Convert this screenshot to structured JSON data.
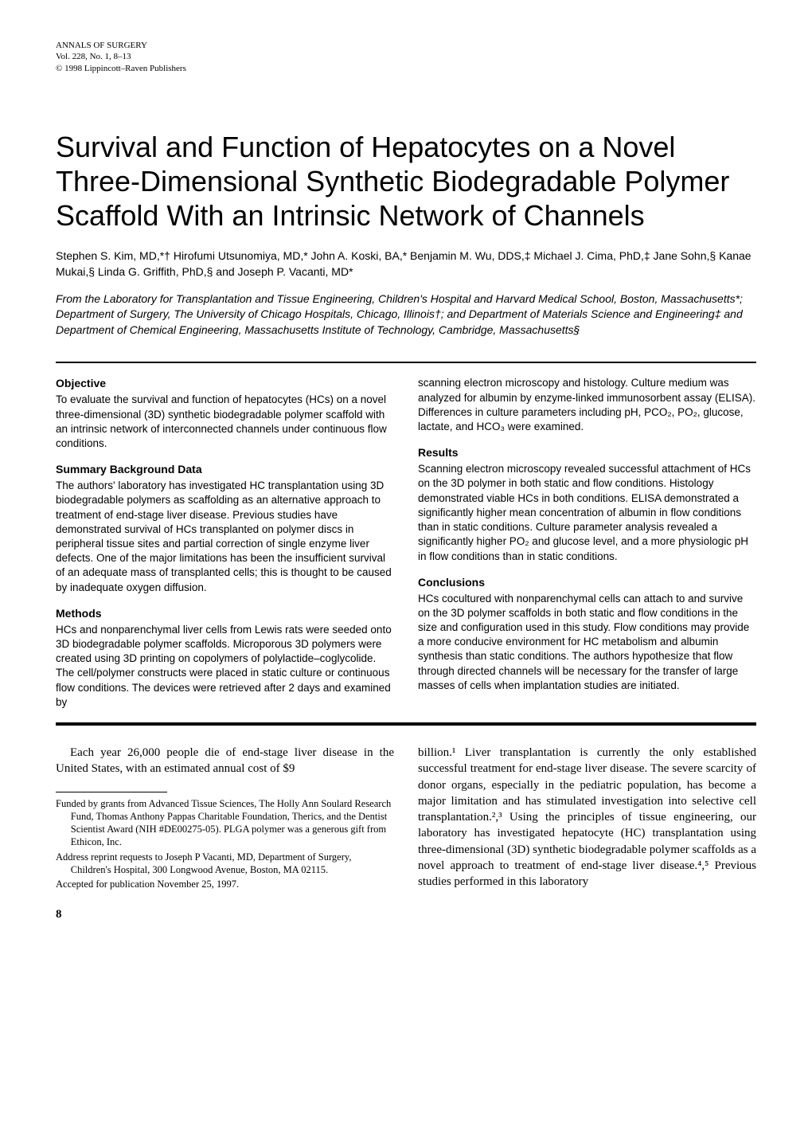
{
  "journal": {
    "name": "ANNALS OF SURGERY",
    "volume": "Vol. 228, No. 1, 8–13",
    "copyright": "© 1998 Lippincott–Raven Publishers"
  },
  "title": "Survival and Function of Hepatocytes on a Novel Three-Dimensional Synthetic Biodegradable Polymer Scaffold With an Intrinsic Network of Channels",
  "authors": "Stephen S. Kim, MD,*† Hirofumi Utsunomiya, MD,* John A. Koski, BA,* Benjamin M. Wu, DDS,‡ Michael J. Cima, PhD,‡ Jane Sohn,§ Kanae Mukai,§ Linda G. Griffith, PhD,§ and Joseph P. Vacanti, MD*",
  "affiliations": "From the Laboratory for Transplantation and Tissue Engineering, Children's Hospital and Harvard Medical School, Boston, Massachusetts*; Department of Surgery, The University of Chicago Hospitals, Chicago, Illinois†; and Department of Materials Science and Engineering‡ and Department of Chemical Engineering, Massachusetts Institute of Technology, Cambridge, Massachusetts§",
  "abstract": {
    "objective": {
      "heading": "Objective",
      "text": "To evaluate the survival and function of hepatocytes (HCs) on a novel three-dimensional (3D) synthetic biodegradable polymer scaffold with an intrinsic network of interconnected channels under continuous flow conditions."
    },
    "background": {
      "heading": "Summary Background Data",
      "text": "The authors' laboratory has investigated HC transplantation using 3D biodegradable polymers as scaffolding as an alternative approach to treatment of end-stage liver disease. Previous studies have demonstrated survival of HCs transplanted on polymer discs in peripheral tissue sites and partial correction of single enzyme liver defects. One of the major limitations has been the insufficient survival of an adequate mass of transplanted cells; this is thought to be caused by inadequate oxygen diffusion."
    },
    "methods": {
      "heading": "Methods",
      "text": "HCs and nonparenchymal liver cells from Lewis rats were seeded onto 3D biodegradable polymer scaffolds. Microporous 3D polymers were created using 3D printing on copolymers of polylactide–coglycolide. The cell/polymer constructs were placed in static culture or continuous flow conditions. The devices were retrieved after 2 days and examined by"
    },
    "methods_cont": "scanning electron microscopy and histology. Culture medium was analyzed for albumin by enzyme-linked immunosorbent assay (ELISA). Differences in culture parameters including pH, PCO₂, PO₂, glucose, lactate, and HCO₃ were examined.",
    "results": {
      "heading": "Results",
      "text": "Scanning electron microscopy revealed successful attachment of HCs on the 3D polymer in both static and flow conditions. Histology demonstrated viable HCs in both conditions. ELISA demonstrated a significantly higher mean concentration of albumin in flow conditions than in static conditions. Culture parameter analysis revealed a significantly higher PO₂ and glucose level, and a more physiologic pH in flow conditions than in static conditions."
    },
    "conclusions": {
      "heading": "Conclusions",
      "text": "HCs cocultured with nonparenchymal cells can attach to and survive on the 3D polymer scaffolds in both static and flow conditions in the size and configuration used in this study. Flow conditions may provide a more conducive environment for HC metabolism and albumin synthesis than static conditions. The authors hypothesize that flow through directed channels will be necessary for the transfer of large masses of cells when implantation studies are initiated."
    }
  },
  "body": {
    "left_para": "Each year 26,000 people die of end-stage liver disease in the United States, with an estimated annual cost of $9",
    "right_para": "billion.¹ Liver transplantation is currently the only established successful treatment for end-stage liver disease. The severe scarcity of donor organs, especially in the pediatric population, has become a major limitation and has stimulated investigation into selective cell transplantation.²,³ Using the principles of tissue engineering, our laboratory has investigated hepatocyte (HC) transplantation using three-dimensional (3D) synthetic biodegradable polymer scaffolds as a novel approach to treatment of end-stage liver disease.⁴,⁵ Previous studies performed in this laboratory"
  },
  "footnotes": {
    "funding": "Funded by grants from Advanced Tissue Sciences, The Holly Ann Soulard Research Fund, Thomas Anthony Pappas Charitable Foundation, Therics, and the Dentist Scientist Award (NIH #DE00275-05). PLGA polymer was a generous gift from Ethicon, Inc.",
    "reprint": "Address reprint requests to Joseph P Vacanti, MD, Department of Surgery, Children's Hospital, 300 Longwood Avenue, Boston, MA 02115.",
    "accepted": "Accepted for publication November 25, 1997."
  },
  "page_number": "8"
}
